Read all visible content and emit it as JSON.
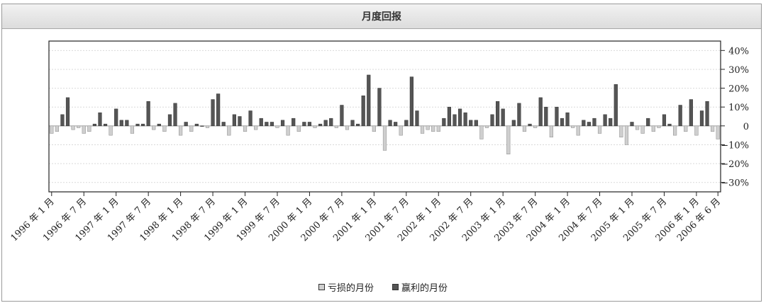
{
  "window": {
    "title": "月度回报"
  },
  "chart_data": {
    "type": "bar",
    "title": "月度回报",
    "ylabel": "",
    "xlabel": "",
    "y_axis_position": "right",
    "ylim": [
      -35,
      45
    ],
    "ytick_values": [
      40,
      30,
      20,
      10,
      0,
      -10,
      -20,
      -30
    ],
    "ytick_labels": [
      "40%",
      "30%",
      "20%",
      "10%",
      "0",
      "−10%",
      "−20%",
      "−30%"
    ],
    "grid": true,
    "legend": "bottom-center",
    "x_tick_labels": [
      "1996 年 1 月",
      "1996 年 7 月",
      "1997 年 1 月",
      "1997 年 7 月",
      "1998 年 1 月",
      "1998 年 7 月",
      "1999 年 1 月",
      "1999 年 7 月",
      "2000 年 1 月",
      "2000 年 7 月",
      "2001 年 1 月",
      "2001 年 7 月",
      "2002 年 1 月",
      "2002 年 7 月",
      "2003 年 1 月",
      "2003 年 7 月",
      "2004 年 1 月",
      "2004 年 7 月",
      "2005 年 1 月",
      "2005 年 7 月",
      "2006 年 1 月",
      "2006 年 6 月"
    ],
    "series": [
      {
        "name": "亏损的月份",
        "color": "#cfcfcf"
      },
      {
        "name": "赢利的月份",
        "color": "#555555"
      }
    ],
    "values": [
      -4,
      -3,
      6,
      15,
      -2,
      -1,
      -4,
      -3,
      1,
      7,
      1,
      -5,
      9,
      3,
      3,
      -4,
      1,
      1,
      13,
      -2,
      1,
      -3,
      6,
      12,
      -5,
      2,
      -3,
      1,
      0,
      -1,
      14,
      17,
      2,
      -5,
      6,
      5,
      -3,
      8,
      -2,
      4,
      2,
      2,
      -1,
      3,
      -5,
      4,
      -3,
      2,
      2,
      -1,
      1,
      3,
      4,
      -1,
      11,
      -2,
      3,
      1,
      16,
      27,
      -3,
      20,
      -13,
      3,
      2,
      -5,
      3,
      26,
      8,
      -4,
      -2,
      -3,
      -3,
      4,
      10,
      6,
      9,
      7,
      3,
      3,
      -7,
      -1,
      6,
      13,
      9,
      -15,
      3,
      12,
      -3,
      1,
      -1,
      15,
      10,
      -6,
      10,
      4,
      7,
      -1,
      -5,
      3,
      2,
      4,
      -4,
      6,
      4,
      22,
      -6,
      -10,
      2,
      -2,
      -4,
      4,
      -3,
      -1,
      6,
      1,
      -5,
      11,
      -3,
      14,
      -5,
      8,
      13,
      -3,
      -7
    ]
  }
}
